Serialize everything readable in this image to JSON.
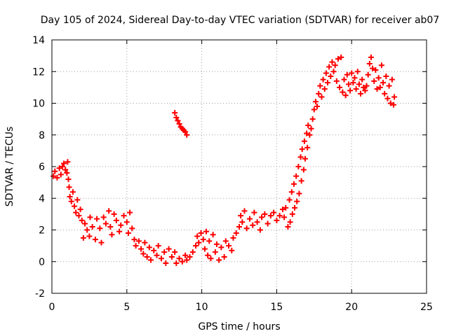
{
  "chart_data": {
    "type": "scatter",
    "title": "Day 105 of 2024, Sidereal Day-to-day VTEC variation (SDTVAR) for receiver ab07",
    "xlabel": "GPS time / hours",
    "ylabel": "SDTVAR / TECUs",
    "xlim": [
      0,
      25
    ],
    "ylim": [
      -2,
      14
    ],
    "x_ticks": [
      0,
      5,
      10,
      15,
      20,
      25
    ],
    "y_ticks": [
      -2,
      0,
      2,
      4,
      6,
      8,
      10,
      12,
      14
    ],
    "grid": true,
    "marker": "plus",
    "color": "#ff0000",
    "series": [
      {
        "name": "SDTVAR",
        "points": [
          [
            0.1,
            5.4
          ],
          [
            0.2,
            5.7
          ],
          [
            0.35,
            5.3
          ],
          [
            0.5,
            5.9
          ],
          [
            0.6,
            5.5
          ],
          [
            0.7,
            6.0
          ],
          [
            0.8,
            6.2
          ],
          [
            0.9,
            5.8
          ],
          [
            1.0,
            5.6
          ],
          [
            1.05,
            6.3
          ],
          [
            1.1,
            5.2
          ],
          [
            1.15,
            4.7
          ],
          [
            1.2,
            4.1
          ],
          [
            1.3,
            3.8
          ],
          [
            1.4,
            4.4
          ],
          [
            1.5,
            3.5
          ],
          [
            1.6,
            3.1
          ],
          [
            1.7,
            3.9
          ],
          [
            1.8,
            2.9
          ],
          [
            1.9,
            3.3
          ],
          [
            2.0,
            2.6
          ],
          [
            2.1,
            1.5
          ],
          [
            2.2,
            2.4
          ],
          [
            2.35,
            2.0
          ],
          [
            2.5,
            1.6
          ],
          [
            2.55,
            2.8
          ],
          [
            2.7,
            2.2
          ],
          [
            2.9,
            1.4
          ],
          [
            3.0,
            2.7
          ],
          [
            3.2,
            2.1
          ],
          [
            3.3,
            1.2
          ],
          [
            3.45,
            2.8
          ],
          [
            3.6,
            2.4
          ],
          [
            3.8,
            3.2
          ],
          [
            3.9,
            2.2
          ],
          [
            4.0,
            1.7
          ],
          [
            4.15,
            3.0
          ],
          [
            4.3,
            2.6
          ],
          [
            4.5,
            1.9
          ],
          [
            4.6,
            2.3
          ],
          [
            4.8,
            2.9
          ],
          [
            5.0,
            2.5
          ],
          [
            5.1,
            1.8
          ],
          [
            5.2,
            3.1
          ],
          [
            5.35,
            2.1
          ],
          [
            5.5,
            1.4
          ],
          [
            5.6,
            1.0
          ],
          [
            5.8,
            1.3
          ],
          [
            5.95,
            0.8
          ],
          [
            6.1,
            0.5
          ],
          [
            6.2,
            1.2
          ],
          [
            6.35,
            0.3
          ],
          [
            6.5,
            0.9
          ],
          [
            6.6,
            0.1
          ],
          [
            6.8,
            0.7
          ],
          [
            7.0,
            0.4
          ],
          [
            7.1,
            1.0
          ],
          [
            7.3,
            0.2
          ],
          [
            7.5,
            0.6
          ],
          [
            7.6,
            -0.1
          ],
          [
            7.8,
            0.8
          ],
          [
            8.0,
            0.3
          ],
          [
            8.2,
            0.6
          ],
          [
            8.3,
            -0.1
          ],
          [
            8.5,
            0.2
          ],
          [
            8.7,
            0.0
          ],
          [
            8.9,
            0.4
          ],
          [
            9.0,
            0.1
          ],
          [
            9.2,
            0.3
          ],
          [
            9.4,
            0.6
          ],
          [
            9.6,
            1.0
          ],
          [
            9.7,
            1.6
          ],
          [
            9.8,
            1.2
          ],
          [
            9.95,
            1.8
          ],
          [
            10.1,
            1.4
          ],
          [
            10.2,
            0.8
          ],
          [
            10.3,
            1.9
          ],
          [
            10.4,
            0.4
          ],
          [
            10.5,
            1.3
          ],
          [
            10.6,
            0.2
          ],
          [
            10.75,
            1.7
          ],
          [
            10.9,
            0.6
          ],
          [
            11.0,
            1.1
          ],
          [
            11.15,
            0.1
          ],
          [
            11.3,
            0.9
          ],
          [
            11.5,
            0.3
          ],
          [
            11.6,
            1.3
          ],
          [
            11.8,
            1.0
          ],
          [
            12.0,
            0.7
          ],
          [
            12.1,
            1.5
          ],
          [
            12.3,
            1.8
          ],
          [
            12.5,
            2.2
          ],
          [
            12.6,
            2.9
          ],
          [
            12.7,
            2.5
          ],
          [
            12.85,
            3.2
          ],
          [
            13.0,
            2.1
          ],
          [
            13.2,
            2.7
          ],
          [
            13.4,
            2.3
          ],
          [
            13.5,
            3.1
          ],
          [
            13.7,
            2.5
          ],
          [
            13.9,
            2.0
          ],
          [
            14.0,
            2.8
          ],
          [
            14.2,
            3.0
          ],
          [
            14.4,
            2.4
          ],
          [
            14.6,
            2.9
          ],
          [
            14.8,
            3.1
          ],
          [
            15.0,
            2.6
          ],
          [
            15.2,
            2.9
          ],
          [
            15.4,
            3.3
          ],
          [
            15.5,
            2.8
          ],
          [
            15.6,
            3.4
          ],
          [
            15.75,
            2.2
          ],
          [
            15.85,
            3.9
          ],
          [
            15.9,
            2.5
          ],
          [
            16.0,
            4.4
          ],
          [
            16.05,
            3.0
          ],
          [
            16.15,
            4.9
          ],
          [
            16.2,
            3.4
          ],
          [
            16.3,
            5.4
          ],
          [
            16.35,
            3.8
          ],
          [
            16.45,
            6.0
          ],
          [
            16.5,
            4.3
          ],
          [
            16.6,
            6.6
          ],
          [
            16.65,
            5.1
          ],
          [
            16.7,
            7.1
          ],
          [
            16.8,
            5.8
          ],
          [
            16.85,
            7.6
          ],
          [
            16.9,
            6.5
          ],
          [
            17.0,
            8.1
          ],
          [
            17.05,
            7.2
          ],
          [
            17.1,
            8.6
          ],
          [
            17.2,
            8.0
          ],
          [
            17.3,
            8.4
          ],
          [
            17.4,
            9.0
          ],
          [
            17.5,
            9.6
          ],
          [
            17.6,
            10.1
          ],
          [
            17.7,
            9.8
          ],
          [
            17.8,
            10.6
          ],
          [
            17.9,
            11.1
          ],
          [
            18.0,
            10.4
          ],
          [
            18.1,
            11.5
          ],
          [
            18.2,
            10.9
          ],
          [
            18.3,
            11.9
          ],
          [
            18.4,
            11.3
          ],
          [
            18.5,
            12.3
          ],
          [
            18.6,
            11.7
          ],
          [
            18.7,
            12.6
          ],
          [
            18.8,
            12.0
          ],
          [
            18.9,
            12.4
          ],
          [
            19.0,
            11.4
          ],
          [
            19.1,
            12.8
          ],
          [
            19.2,
            11.0
          ],
          [
            19.3,
            12.9
          ],
          [
            19.4,
            10.7
          ],
          [
            19.5,
            11.5
          ],
          [
            19.6,
            10.5
          ],
          [
            19.7,
            11.8
          ],
          [
            19.8,
            11.2
          ],
          [
            19.9,
            10.8
          ],
          [
            20.0,
            11.9
          ],
          [
            20.1,
            11.3
          ],
          [
            20.2,
            11.6
          ],
          [
            20.3,
            10.9
          ],
          [
            20.4,
            12.0
          ],
          [
            20.5,
            11.2
          ],
          [
            20.6,
            10.6
          ],
          [
            20.7,
            11.5
          ],
          [
            20.8,
            11.0
          ],
          [
            20.9,
            10.8
          ],
          [
            21.0,
            11.1
          ],
          [
            21.1,
            11.8
          ],
          [
            21.2,
            12.5
          ],
          [
            21.3,
            12.9
          ],
          [
            21.4,
            12.2
          ],
          [
            21.5,
            11.4
          ],
          [
            21.6,
            12.1
          ],
          [
            21.7,
            10.9
          ],
          [
            21.8,
            11.6
          ],
          [
            21.9,
            11.0
          ],
          [
            22.0,
            12.4
          ],
          [
            22.1,
            11.3
          ],
          [
            22.2,
            10.6
          ],
          [
            22.3,
            11.7
          ],
          [
            22.4,
            10.3
          ],
          [
            22.5,
            11.1
          ],
          [
            22.6,
            10.0
          ],
          [
            22.7,
            11.5
          ],
          [
            22.8,
            9.9
          ],
          [
            22.85,
            10.4
          ],
          [
            8.2,
            9.4
          ],
          [
            8.3,
            9.1
          ],
          [
            8.4,
            8.9
          ],
          [
            8.5,
            8.7
          ],
          [
            8.6,
            8.5
          ],
          [
            8.7,
            8.4
          ],
          [
            8.8,
            8.3
          ],
          [
            8.9,
            8.2
          ],
          [
            9.0,
            8.0
          ]
        ]
      }
    ]
  }
}
